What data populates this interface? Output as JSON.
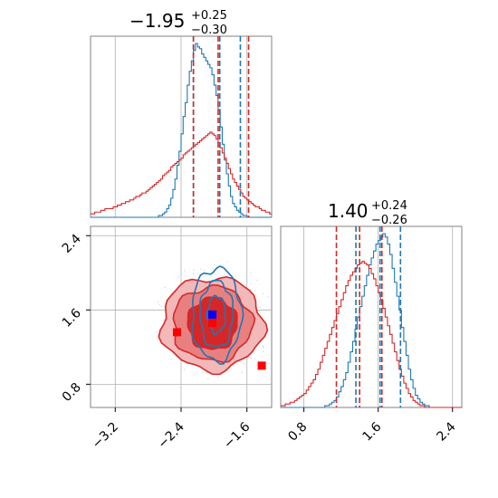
{
  "chart_data": [
    {
      "type": "histogram",
      "panel": "top-left",
      "parameter_index": 0,
      "title": {
        "median": "−1.95",
        "plus": "+0.25",
        "minus": "−0.30"
      },
      "xlim": [
        -3.5,
        -1.3
      ],
      "show_ticks": false,
      "series": [
        {
          "name": "",
          "color": "#1f77b4",
          "bins_x0": -3.5,
          "bin_width": 0.025,
          "counts": [
            0,
            0,
            0,
            0,
            0,
            0,
            0,
            0,
            0,
            0,
            0,
            0,
            0,
            0,
            0,
            0,
            0,
            0,
            0,
            0,
            0,
            0,
            0,
            0,
            0,
            0,
            0,
            0,
            0,
            0,
            0,
            0,
            0,
            1,
            1,
            2,
            3,
            5,
            7,
            11,
            16,
            22,
            30,
            38,
            48,
            58,
            66,
            76,
            84,
            90,
            96,
            100,
            98,
            97,
            94,
            92,
            90,
            88,
            86,
            82,
            76,
            70,
            62,
            52,
            42,
            33,
            25,
            18,
            12,
            8,
            6,
            4,
            3,
            2,
            1,
            1,
            0,
            0,
            0,
            0,
            0,
            0,
            0,
            0,
            0,
            0,
            0,
            0
          ],
          "quantile_lines": [
            -2.25,
            -1.93,
            -1.68
          ],
          "quantile_line_color": "#1f77b4"
        },
        {
          "name": "",
          "color": "#d62728",
          "bins_x0": -3.5,
          "bin_width": 0.025,
          "counts": [
            2,
            2,
            3,
            3,
            3,
            4,
            4,
            5,
            5,
            5,
            5,
            6,
            6,
            7,
            7,
            8,
            8,
            9,
            9,
            10,
            10,
            11,
            12,
            12,
            13,
            14,
            14,
            15,
            16,
            17,
            18,
            19,
            20,
            21,
            22,
            24,
            25,
            26,
            27,
            29,
            30,
            31,
            32,
            33,
            34,
            36,
            37,
            38,
            39,
            40,
            41,
            42,
            43,
            44,
            45,
            46,
            47,
            48,
            49,
            48,
            47,
            45,
            43,
            40,
            37,
            34,
            31,
            28,
            25,
            22,
            20,
            18,
            16,
            14,
            12,
            11,
            10,
            9,
            8,
            7,
            6,
            6,
            5,
            4,
            4,
            3,
            3,
            2
          ],
          "quantile_lines": [
            -2.25,
            -1.95,
            -1.58
          ],
          "quantile_line_color": "#d62728"
        }
      ]
    },
    {
      "type": "histogram",
      "panel": "bottom-right",
      "parameter_index": 1,
      "title": {
        "median": "1.40",
        "plus": "+0.24",
        "minus": "−0.26"
      },
      "xlim": [
        0.55,
        2.5
      ],
      "xticks": [
        "0.8",
        "1.6",
        "2.4"
      ],
      "xtick_values": [
        0.8,
        1.6,
        2.4
      ],
      "series": [
        {
          "name": "",
          "color": "#1f77b4",
          "bins_x0": 0.55,
          "bin_width": 0.025,
          "counts": [
            0,
            0,
            0,
            0,
            0,
            0,
            0,
            0,
            0,
            0,
            0,
            0,
            0,
            0,
            0,
            0,
            0,
            0,
            0,
            1,
            1,
            2,
            3,
            4,
            6,
            9,
            12,
            16,
            20,
            26,
            32,
            38,
            45,
            52,
            58,
            64,
            70,
            76,
            82,
            86,
            90,
            94,
            96,
            98,
            100,
            98,
            94,
            88,
            80,
            72,
            64,
            56,
            46,
            38,
            30,
            22,
            16,
            11,
            7,
            5,
            3,
            2,
            1,
            1,
            0,
            0,
            0,
            0,
            0,
            0,
            0,
            0,
            0,
            0,
            0,
            0,
            0,
            0
          ],
          "quantile_lines": [
            1.36,
            1.62,
            1.84
          ],
          "quantile_line_color": "#1f77b4"
        },
        {
          "name": "",
          "color": "#d62728",
          "bins_x0": 0.55,
          "bin_width": 0.025,
          "counts": [
            1,
            1,
            2,
            2,
            3,
            3,
            4,
            5,
            6,
            7,
            8,
            10,
            12,
            14,
            16,
            19,
            22,
            26,
            30,
            34,
            38,
            42,
            46,
            50,
            54,
            58,
            62,
            66,
            70,
            73,
            76,
            78,
            80,
            82,
            83,
            84,
            83,
            82,
            80,
            77,
            74,
            70,
            66,
            62,
            57,
            52,
            47,
            42,
            37,
            32,
            27,
            22,
            18,
            14,
            11,
            8,
            6,
            4,
            3,
            2,
            1,
            1,
            0,
            0,
            0,
            0,
            0,
            0,
            0,
            0,
            0,
            0,
            0,
            0,
            0,
            0,
            0,
            0
          ],
          "quantile_lines": [
            1.15,
            1.4,
            1.64
          ],
          "quantile_line_color": "#d62728"
        }
      ]
    },
    {
      "type": "contour",
      "panel": "bottom-left",
      "xlim": [
        -3.5,
        -1.3
      ],
      "ylim": [
        0.55,
        2.5
      ],
      "xticks": [
        "−3.2",
        "−2.4",
        "−1.6"
      ],
      "xtick_values": [
        -3.2,
        -2.4,
        -1.6
      ],
      "yticks": [
        "0.8",
        "1.6",
        "2.4"
      ],
      "ytick_values": [
        0.8,
        1.6,
        2.4
      ],
      "series": [
        {
          "name": "",
          "color": "#d62728",
          "center": [
            -2.02,
            1.45
          ],
          "levels": [
            {
              "rx": 0.62,
              "ry": 0.5,
              "fill": "#f3b8b8"
            },
            {
              "rx": 0.48,
              "ry": 0.4,
              "fill": "#e98080"
            },
            {
              "rx": 0.3,
              "ry": 0.28,
              "fill": "#d62728"
            }
          ]
        },
        {
          "name": "",
          "color": "#1f77b4",
          "center": [
            -1.97,
            1.55
          ],
          "levels": [
            {
              "rx": 0.3,
              "ry": 0.5
            },
            {
              "rx": 0.2,
              "ry": 0.36
            },
            {
              "rx": 0.11,
              "ry": 0.2
            }
          ]
        }
      ],
      "markers": [
        {
          "x": -2.45,
          "y": 1.36,
          "color": "#ff0000",
          "shape": "square"
        },
        {
          "x": -2.02,
          "y": 1.46,
          "color": "#ff0000",
          "shape": "square"
        },
        {
          "x": -1.42,
          "y": 1.0,
          "color": "#ff0000",
          "shape": "square"
        },
        {
          "x": -2.02,
          "y": 1.55,
          "color": "#0000ff",
          "shape": "square"
        }
      ]
    }
  ],
  "grid": true
}
